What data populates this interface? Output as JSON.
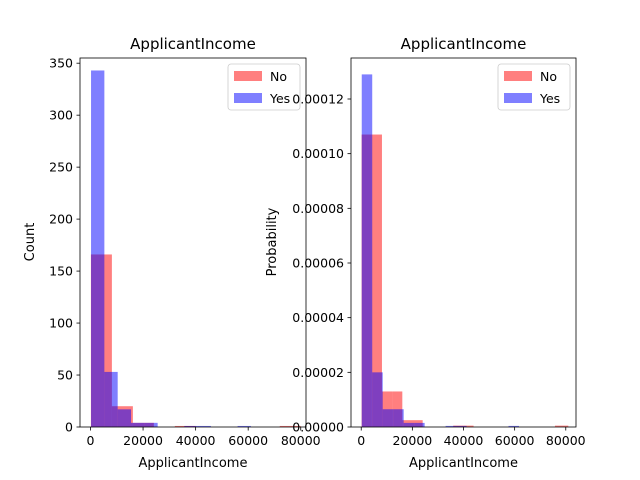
{
  "chart_data": [
    {
      "type": "bar",
      "title": "ApplicantIncome",
      "xlabel": "ApplicantIncome",
      "ylabel": "Count",
      "xlim": [
        -4000,
        82000
      ],
      "ylim": [
        0,
        355
      ],
      "xticks": [
        0,
        20000,
        40000,
        60000,
        80000
      ],
      "xtick_labels": [
        "0",
        "20000",
        "40000",
        "60000",
        "80000"
      ],
      "yticks": [
        0,
        50,
        100,
        150,
        200,
        250,
        300,
        350
      ],
      "ytick_labels": [
        "0",
        "50",
        "100",
        "150",
        "200",
        "250",
        "300",
        "350"
      ],
      "grid": false,
      "legend_position": "top-right",
      "series": [
        {
          "name": "No",
          "color": "#ff0000",
          "alpha": 0.5,
          "bins": [
            {
              "x0": 150,
              "x1": 8135,
              "value": 166
            },
            {
              "x0": 8135,
              "x1": 16120,
              "value": 20
            },
            {
              "x0": 16120,
              "x1": 24105,
              "value": 4
            },
            {
              "x0": 24105,
              "x1": 32090,
              "value": 0
            },
            {
              "x0": 32090,
              "x1": 40075,
              "value": 1
            },
            {
              "x0": 40075,
              "x1": 48060,
              "value": 0
            },
            {
              "x0": 48060,
              "x1": 56045,
              "value": 0
            },
            {
              "x0": 56045,
              "x1": 64030,
              "value": 0
            },
            {
              "x0": 64030,
              "x1": 72015,
              "value": 0
            },
            {
              "x0": 72015,
              "x1": 80000,
              "value": 1
            }
          ]
        },
        {
          "name": "Yes",
          "color": "#0000ff",
          "alpha": 0.5,
          "bins": [
            {
              "x0": 200,
              "x1": 5270,
              "value": 343
            },
            {
              "x0": 5270,
              "x1": 10340,
              "value": 53
            },
            {
              "x0": 10340,
              "x1": 15410,
              "value": 17
            },
            {
              "x0": 15410,
              "x1": 20480,
              "value": 4
            },
            {
              "x0": 20480,
              "x1": 25550,
              "value": 4
            },
            {
              "x0": 25550,
              "x1": 30620,
              "value": 0
            },
            {
              "x0": 30620,
              "x1": 35690,
              "value": 0
            },
            {
              "x0": 35690,
              "x1": 40760,
              "value": 1
            },
            {
              "x0": 40760,
              "x1": 45830,
              "value": 1
            },
            {
              "x0": 45830,
              "x1": 50900,
              "value": 0
            },
            {
              "x0": 50900,
              "x1": 55970,
              "value": 0
            },
            {
              "x0": 55970,
              "x1": 61040,
              "value": 1
            },
            {
              "x0": 61040,
              "x1": 66110,
              "value": 0
            }
          ]
        }
      ]
    },
    {
      "type": "bar",
      "title": "ApplicantIncome",
      "xlabel": "ApplicantIncome",
      "ylabel": "Probability",
      "xlim": [
        -4000,
        84000
      ],
      "ylim": [
        0,
        0.000135
      ],
      "xticks": [
        0,
        20000,
        40000,
        60000,
        80000
      ],
      "xtick_labels": [
        "0",
        "20000",
        "40000",
        "60000",
        "80000"
      ],
      "yticks": [
        0,
        2e-05,
        4e-05,
        6e-05,
        8e-05,
        0.0001,
        0.00012
      ],
      "ytick_labels": [
        "0.00000",
        "0.00002",
        "0.00004",
        "0.00006",
        "0.00008",
        "0.00010",
        "0.00012"
      ],
      "grid": false,
      "legend_position": "top-right",
      "series": [
        {
          "name": "No",
          "color": "#ff0000",
          "alpha": 0.5,
          "bins": [
            {
              "x0": 150,
              "x1": 4130,
              "value": 0.000107
            },
            {
              "x0": 4130,
              "x1": 8110,
              "value": 0.000107
            },
            {
              "x0": 8110,
              "x1": 12090,
              "value": 1.3e-05
            },
            {
              "x0": 12090,
              "x1": 16070,
              "value": 1.3e-05
            },
            {
              "x0": 16070,
              "x1": 20050,
              "value": 2.5e-06
            },
            {
              "x0": 20050,
              "x1": 24030,
              "value": 2.5e-06
            },
            {
              "x0": 24030,
              "x1": 28010,
              "value": 0
            },
            {
              "x0": 28010,
              "x1": 31990,
              "value": 0
            },
            {
              "x0": 31990,
              "x1": 35970,
              "value": 0
            },
            {
              "x0": 35970,
              "x1": 39950,
              "value": 5e-07
            },
            {
              "x0": 39950,
              "x1": 43930,
              "value": 5e-07
            },
            {
              "x0": 43930,
              "x1": 47910,
              "value": 0
            },
            {
              "x0": 47910,
              "x1": 51890,
              "value": 0
            },
            {
              "x0": 51890,
              "x1": 55870,
              "value": 0
            },
            {
              "x0": 55870,
              "x1": 59850,
              "value": 0
            },
            {
              "x0": 59850,
              "x1": 63830,
              "value": 0
            },
            {
              "x0": 63830,
              "x1": 67810,
              "value": 0
            },
            {
              "x0": 67810,
              "x1": 71790,
              "value": 0
            },
            {
              "x0": 71790,
              "x1": 75770,
              "value": 0
            },
            {
              "x0": 75770,
              "x1": 81000,
              "value": 5e-07
            }
          ]
        },
        {
          "name": "Yes",
          "color": "#0000ff",
          "alpha": 0.5,
          "bins": [
            {
              "x0": 200,
              "x1": 4300,
              "value": 0.000129
            },
            {
              "x0": 4300,
              "x1": 8400,
              "value": 2e-05
            },
            {
              "x0": 8400,
              "x1": 12500,
              "value": 6.5e-06
            },
            {
              "x0": 12500,
              "x1": 16600,
              "value": 6.5e-06
            },
            {
              "x0": 16600,
              "x1": 20700,
              "value": 1.5e-06
            },
            {
              "x0": 20700,
              "x1": 24800,
              "value": 1.5e-06
            },
            {
              "x0": 24800,
              "x1": 28900,
              "value": 0
            },
            {
              "x0": 28900,
              "x1": 33000,
              "value": 0
            },
            {
              "x0": 33000,
              "x1": 37100,
              "value": 4e-07
            },
            {
              "x0": 37100,
              "x1": 41200,
              "value": 4e-07
            },
            {
              "x0": 41200,
              "x1": 45300,
              "value": 0
            },
            {
              "x0": 45300,
              "x1": 49400,
              "value": 0
            },
            {
              "x0": 49400,
              "x1": 53500,
              "value": 0
            },
            {
              "x0": 53500,
              "x1": 57600,
              "value": 0
            },
            {
              "x0": 57600,
              "x1": 61700,
              "value": 4e-07
            },
            {
              "x0": 61700,
              "x1": 65800,
              "value": 0
            }
          ]
        }
      ]
    }
  ]
}
